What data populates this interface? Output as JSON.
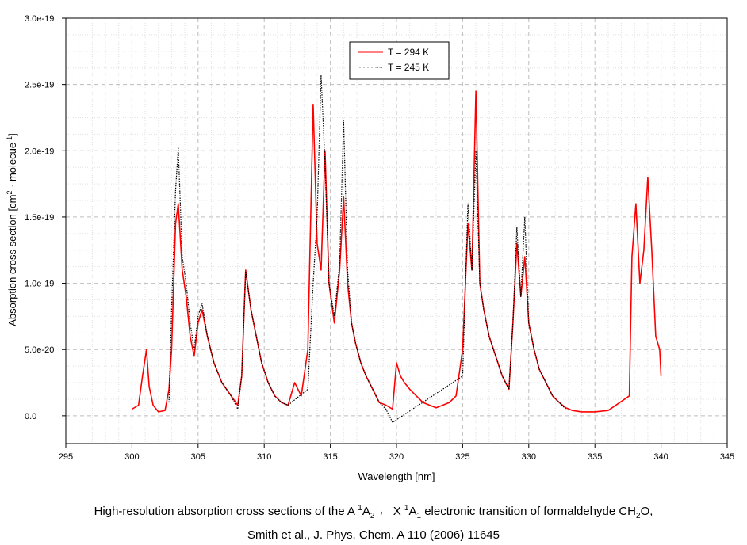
{
  "chart_data": {
    "type": "line",
    "xlabel": "Wavelength [nm]",
    "ylabel_parts": {
      "before_sup1": "Absorption cross section [cm",
      "sup1": "2",
      "middle": " · molecue",
      "sup2": "-1",
      "after": "]"
    },
    "xlim": [
      295,
      345
    ],
    "ylim": [
      -2.1e-20,
      3e-19
    ],
    "x_ticks": [
      295,
      300,
      305,
      310,
      315,
      320,
      325,
      330,
      335,
      340,
      345
    ],
    "x_tick_labels": [
      "295",
      "300",
      "305",
      "310",
      "315",
      "320",
      "325",
      "330",
      "335",
      "340",
      "345"
    ],
    "y_ticks": [
      0,
      5e-20,
      1e-19,
      1.5e-19,
      2e-19,
      2.5e-19,
      3e-19
    ],
    "y_tick_labels": [
      "0.0",
      "5.0e-20",
      "1.0e-19",
      "1.5e-19",
      "2.0e-19",
      "2.5e-19",
      "3.0e-19"
    ],
    "grid": true,
    "legend_position": "top-center",
    "series": [
      {
        "name": "T = 294  K",
        "color": "#ff0000",
        "style": "solid",
        "x": [
          300.0,
          300.5,
          300.8,
          301.1,
          301.3,
          301.6,
          302.0,
          302.5,
          302.8,
          303.0,
          303.3,
          303.5,
          303.8,
          304.1,
          304.4,
          304.7,
          305.0,
          305.3,
          305.7,
          306.2,
          306.8,
          307.5,
          308.0,
          308.3,
          308.6,
          309.0,
          309.4,
          309.8,
          310.3,
          310.8,
          311.3,
          311.8,
          312.3,
          312.8,
          313.3,
          313.7,
          314.0,
          314.3,
          314.6,
          314.9,
          315.3,
          315.7,
          316.0,
          316.3,
          316.6,
          316.9,
          317.3,
          317.7,
          318.2,
          318.7,
          319.2,
          319.7,
          320.0,
          320.3,
          320.6,
          321.0,
          321.5,
          322.0,
          322.5,
          323.0,
          323.5,
          324.0,
          324.5,
          325.0,
          325.4,
          325.7,
          326.0,
          326.3,
          326.6,
          327.0,
          327.5,
          328.0,
          328.5,
          328.8,
          329.1,
          329.4,
          329.7,
          330.0,
          330.4,
          330.8,
          331.3,
          331.8,
          332.3,
          332.8,
          333.3,
          334.0,
          335.0,
          336.0,
          337.6,
          337.8,
          338.1,
          338.4,
          338.7,
          339.0,
          339.3,
          339.6,
          339.9,
          340.0
        ],
        "y": [
          5e-21,
          8e-21,
          3e-20,
          5e-20,
          2.2e-20,
          8e-21,
          3e-21,
          4e-21,
          2e-20,
          5e-20,
          1.45e-19,
          1.6e-19,
          1.1e-19,
          9e-20,
          6e-20,
          4.5e-20,
          7e-20,
          8e-20,
          6e-20,
          4e-20,
          2.5e-20,
          1.5e-20,
          8e-21,
          3e-20,
          1.1e-19,
          8e-20,
          6e-20,
          4e-20,
          2.5e-20,
          1.5e-20,
          1e-20,
          8e-21,
          2.5e-20,
          1.5e-20,
          5e-20,
          2.35e-19,
          1.3e-19,
          1.1e-19,
          2e-19,
          1e-19,
          7e-20,
          1.1e-19,
          1.65e-19,
          1e-19,
          7e-20,
          5.5e-20,
          4e-20,
          3e-20,
          2e-20,
          1e-20,
          8e-21,
          5e-21,
          4e-20,
          3e-20,
          2.5e-20,
          2e-20,
          1.5e-20,
          1e-20,
          8e-21,
          6e-21,
          8e-21,
          1e-20,
          1.5e-20,
          5e-20,
          1.45e-19,
          1.1e-19,
          2.45e-19,
          1e-19,
          8e-20,
          6e-20,
          4.5e-20,
          3e-20,
          2e-20,
          7e-20,
          1.3e-19,
          9e-20,
          1.2e-19,
          7e-20,
          5e-20,
          3.5e-20,
          2.5e-20,
          1.5e-20,
          1e-20,
          6e-21,
          4e-21,
          3e-21,
          3e-21,
          4e-21,
          1.5e-20,
          1.2e-19,
          1.6e-19,
          1e-19,
          1.25e-19,
          1.8e-19,
          1.25e-19,
          6e-20,
          5e-20,
          3e-20
        ]
      },
      {
        "name": "T = 245 K",
        "color": "#000000",
        "style": "dotted",
        "x": [
          302.8,
          303.0,
          303.3,
          303.5,
          303.8,
          304.1,
          304.4,
          304.7,
          305.0,
          305.3,
          305.7,
          306.2,
          306.8,
          307.5,
          308.0,
          308.3,
          308.6,
          309.0,
          309.4,
          309.8,
          310.3,
          310.8,
          311.3,
          311.8,
          313.3,
          313.7,
          314.0,
          314.3,
          314.6,
          314.9,
          315.3,
          315.7,
          316.0,
          316.3,
          316.6,
          316.9,
          317.3,
          317.7,
          318.2,
          318.7,
          319.2,
          319.7,
          325.0,
          325.4,
          325.7,
          326.0,
          326.3,
          326.6,
          327.0,
          327.5,
          328.0,
          328.5,
          328.8,
          329.1,
          329.4,
          329.7,
          330.0,
          330.4,
          330.8,
          331.3,
          331.8,
          332.3,
          332.8
        ],
        "y": [
          1e-20,
          8e-20,
          1.7e-19,
          2.02e-19,
          1.2e-19,
          1e-19,
          7e-20,
          5e-20,
          7.5e-20,
          8.5e-20,
          6e-20,
          4e-20,
          2.5e-20,
          1.5e-20,
          5e-21,
          3e-20,
          1.09e-19,
          8e-20,
          6e-20,
          4e-20,
          2.5e-20,
          1.5e-20,
          1e-20,
          8e-21,
          2e-20,
          1e-19,
          1.5e-19,
          2.57e-19,
          1.9e-19,
          1e-19,
          7.5e-20,
          1.15e-19,
          2.23e-19,
          1.1e-19,
          7e-20,
          5.5e-20,
          4e-20,
          3e-20,
          2e-20,
          1e-20,
          5e-21,
          -5e-21,
          3e-20,
          1.6e-19,
          1.1e-19,
          2e-19,
          1e-19,
          8e-20,
          6e-20,
          4.5e-20,
          3e-20,
          2e-20,
          7e-20,
          1.42e-19,
          9e-20,
          1.5e-19,
          7e-20,
          5e-20,
          3.5e-20,
          2.5e-20,
          1.5e-20,
          1e-20,
          5e-21
        ]
      }
    ]
  },
  "caption": {
    "line1": {
      "prefix": "High-resolution absorption cross sections of the A ",
      "sup_a": "1",
      "a": "A",
      "sub_a": "2",
      "arrow": " ← X ",
      "sup_x": "1",
      "x": "A",
      "sub_x": "1",
      "middle": " electronic transition of formaldehyde CH",
      "sub_ch": "2",
      "suffix": "O,"
    },
    "line2": "Smith et al., J. Phys. Chem. A 110 (2006) 11645"
  }
}
